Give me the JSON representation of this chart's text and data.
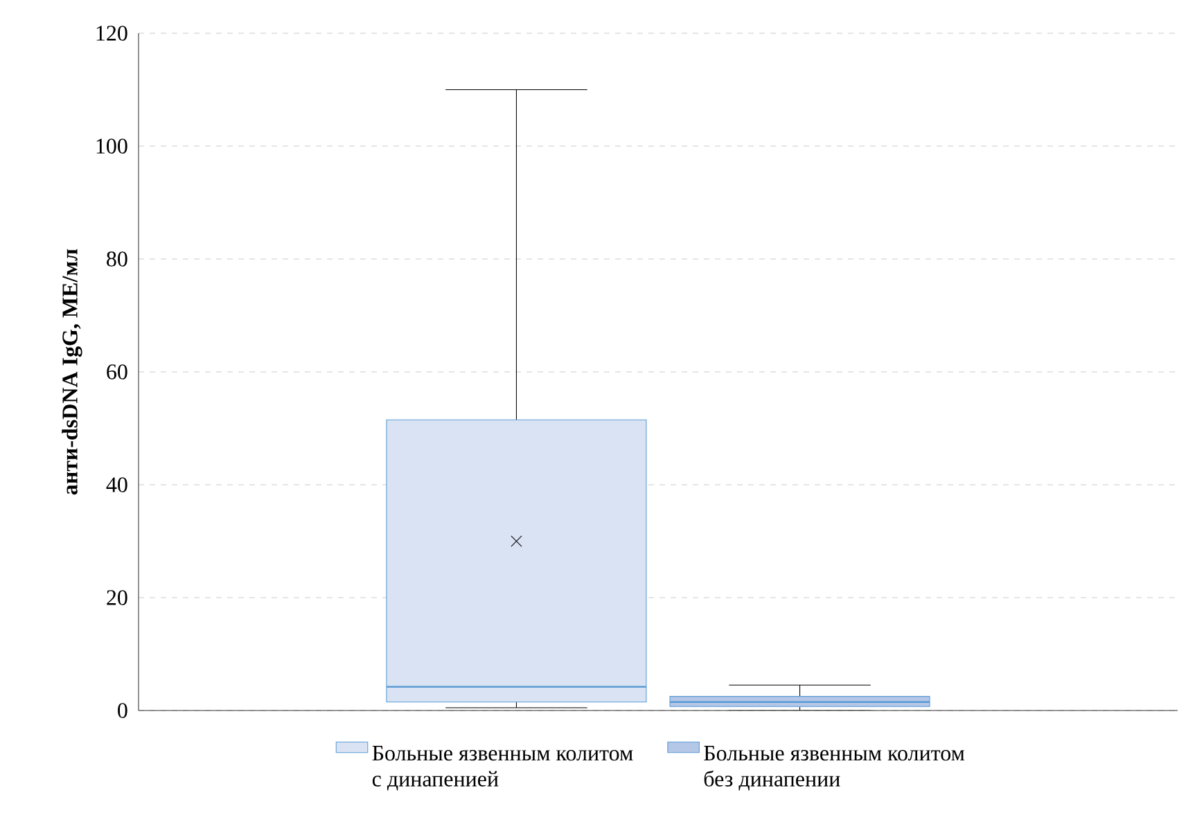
{
  "chart_data": {
    "type": "box",
    "ylabel": "анти-dsDNA IgG, МЕ/мл",
    "categories": [
      null
    ],
    "series": [
      {
        "name": "Больные язвенным колитом с динапенией",
        "color": "#dae3f3",
        "boxes": [
          {
            "low": 0.5,
            "q1": 1.5,
            "median": 4.2,
            "q3": 51.5,
            "high": 110,
            "mean": 30
          }
        ]
      },
      {
        "name": "Больные язвенным колитом без динапении",
        "color": "#b4c7e7",
        "boxes": [
          {
            "low": 0,
            "q1": 0.7,
            "median": 1.5,
            "q3": 2.5,
            "high": 4.5
          }
        ]
      }
    ],
    "ylim": [
      0,
      120
    ],
    "yticks": [
      0,
      20,
      40,
      60,
      80,
      100,
      120
    ],
    "grid": "y",
    "legend": "bottom",
    "marker": "cross",
    "tick_labels": "y"
  }
}
